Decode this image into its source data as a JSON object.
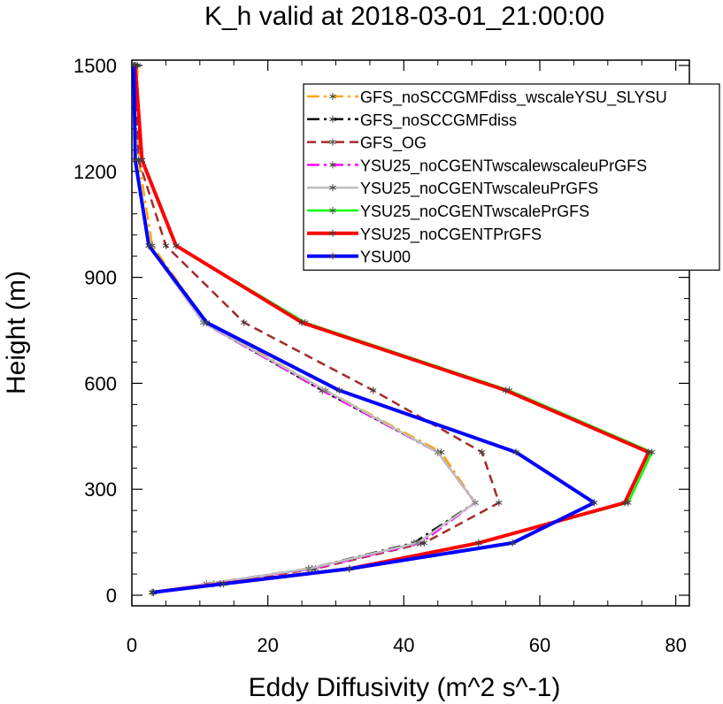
{
  "chart_data": {
    "type": "line",
    "title": "K_h valid at 2018-03-01_21:00:00",
    "xlabel": "Eddy Diffusivity (m^2 s^-1)",
    "ylabel": "Height (m)",
    "xlim": [
      0,
      82
    ],
    "ylim": [
      -30,
      1515
    ],
    "xticks": [
      "0",
      "20",
      "40",
      "60",
      "80"
    ],
    "xtick_values": [
      0,
      20,
      40,
      60,
      80
    ],
    "yticks": [
      "0",
      "300",
      "600",
      "900",
      "1200",
      "1500"
    ],
    "ytick_values": [
      0,
      300,
      600,
      900,
      1200,
      1500
    ],
    "grid": false,
    "legend_position": "top-right",
    "series": [
      {
        "name": "GFS_noSCCGMFdiss_wscaleYSU_SLYSU",
        "color": "#FFA500",
        "dash": "dash-dot",
        "width": 2.5,
        "points": [
          [
            3.2,
            8
          ],
          [
            11,
            32
          ],
          [
            26,
            75
          ],
          [
            42,
            148
          ],
          [
            50.5,
            262
          ],
          [
            45.5,
            405
          ],
          [
            28.5,
            580
          ],
          [
            11,
            772
          ],
          [
            3,
            990
          ],
          [
            1,
            1232
          ],
          [
            0.8,
            1500
          ]
        ]
      },
      {
        "name": "GFS_noSCCGMFdiss",
        "color": "#000000",
        "dash": "dash-dot",
        "width": 2.5,
        "points": [
          [
            3.2,
            8
          ],
          [
            11,
            32
          ],
          [
            26,
            75
          ],
          [
            41.5,
            148
          ],
          [
            50.5,
            262
          ],
          [
            45,
            405
          ],
          [
            28,
            580
          ],
          [
            10.5,
            772
          ],
          [
            2.5,
            990
          ],
          [
            0.5,
            1232
          ],
          [
            0.3,
            1500
          ]
        ]
      },
      {
        "name": "GFS_OG",
        "color": "#A52A2A",
        "dash": "dash",
        "width": 2.5,
        "points": [
          [
            3,
            8
          ],
          [
            12,
            32
          ],
          [
            27,
            75
          ],
          [
            43,
            148
          ],
          [
            54,
            262
          ],
          [
            51.5,
            405
          ],
          [
            35.5,
            580
          ],
          [
            16.5,
            772
          ],
          [
            5,
            990
          ],
          [
            1,
            1232
          ],
          [
            0.5,
            1500
          ]
        ]
      },
      {
        "name": "YSU25_noCGENTwscalewscaleuPrGFS",
        "color": "#FF00FF",
        "dash": "dash-dot",
        "width": 2.5,
        "points": [
          [
            3,
            8
          ],
          [
            11,
            32
          ],
          [
            26.5,
            75
          ],
          [
            42.5,
            148
          ],
          [
            50.5,
            262
          ],
          [
            45,
            405
          ],
          [
            28,
            580
          ],
          [
            10.5,
            772
          ],
          [
            2.5,
            990
          ],
          [
            0.5,
            1232
          ],
          [
            0.3,
            1500
          ]
        ]
      },
      {
        "name": "YSU25_noCGENTwscaleuPrGFS",
        "color": "#BEBEBE",
        "dash": "solid",
        "width": 2.5,
        "points": [
          [
            3,
            8
          ],
          [
            11,
            32
          ],
          [
            26,
            75
          ],
          [
            42,
            148
          ],
          [
            50.5,
            262
          ],
          [
            45,
            405
          ],
          [
            28.5,
            580
          ],
          [
            10.5,
            772
          ],
          [
            2.5,
            990
          ],
          [
            0.5,
            1232
          ],
          [
            0.3,
            1500
          ]
        ]
      },
      {
        "name": "YSU25_noCGENTwscalePrGFS",
        "color": "#00FF00",
        "dash": "solid",
        "width": 2.5,
        "points": [
          [
            3,
            8
          ],
          [
            13,
            32
          ],
          [
            32,
            75
          ],
          [
            51,
            148
          ],
          [
            73,
            262
          ],
          [
            76.5,
            405
          ],
          [
            55.5,
            580
          ],
          [
            25.5,
            772
          ],
          [
            6.5,
            990
          ],
          [
            1.5,
            1232
          ],
          [
            0.5,
            1500
          ]
        ]
      },
      {
        "name": "YSU25_noCGENTPrGFS",
        "color": "#FF0000",
        "dash": "solid",
        "width": 4,
        "points": [
          [
            3,
            8
          ],
          [
            13,
            32
          ],
          [
            32,
            75
          ],
          [
            51,
            148
          ],
          [
            72.5,
            262
          ],
          [
            76,
            405
          ],
          [
            55,
            580
          ],
          [
            25,
            772
          ],
          [
            6.5,
            990
          ],
          [
            1.5,
            1232
          ],
          [
            0.5,
            1500
          ]
        ]
      },
      {
        "name": "YSU00",
        "color": "#0000FF",
        "dash": "solid",
        "width": 4,
        "points": [
          [
            3,
            8
          ],
          [
            13.5,
            32
          ],
          [
            32,
            75
          ],
          [
            56,
            148
          ],
          [
            68,
            262
          ],
          [
            56.5,
            405
          ],
          [
            30.5,
            580
          ],
          [
            11,
            772
          ],
          [
            2.5,
            990
          ],
          [
            0.5,
            1232
          ],
          [
            0.3,
            1500
          ]
        ]
      }
    ]
  }
}
